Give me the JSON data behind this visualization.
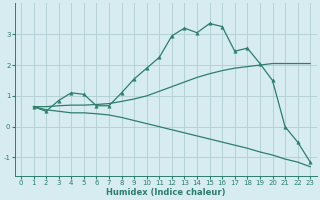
{
  "xlabel": "Humidex (Indice chaleur)",
  "bg_color": "#d6ecf0",
  "line_color": "#2e7d6e",
  "grid_color": "#b0cdd4",
  "xlim": [
    -0.5,
    23.5
  ],
  "ylim": [
    -1.6,
    4.0
  ],
  "yticks": [
    -1,
    0,
    1,
    2,
    3
  ],
  "xticks": [
    0,
    1,
    2,
    3,
    4,
    5,
    6,
    7,
    8,
    9,
    10,
    11,
    12,
    13,
    14,
    15,
    16,
    17,
    18,
    19,
    20,
    21,
    22,
    23
  ],
  "line1_x": [
    1,
    2,
    3,
    4,
    5,
    6,
    7,
    8,
    9,
    10,
    11,
    12,
    13,
    14,
    15,
    16,
    17,
    18,
    19,
    20,
    21,
    22,
    23
  ],
  "line1_y": [
    0.65,
    0.5,
    0.85,
    1.1,
    1.05,
    0.68,
    0.68,
    1.1,
    1.55,
    1.9,
    2.25,
    2.95,
    3.2,
    3.05,
    3.35,
    3.25,
    2.45,
    2.55,
    2.05,
    1.5,
    0.0,
    -0.5,
    -1.15
  ],
  "line2_x": [
    1,
    2,
    3,
    4,
    5,
    6,
    7,
    8,
    9,
    10,
    11,
    12,
    13,
    14,
    15,
    16,
    17,
    18,
    19,
    20,
    21,
    22,
    23
  ],
  "line2_y": [
    0.65,
    0.65,
    0.68,
    0.7,
    0.7,
    0.72,
    0.75,
    0.82,
    0.9,
    1.0,
    1.15,
    1.3,
    1.45,
    1.6,
    1.72,
    1.82,
    1.9,
    1.95,
    2.0,
    2.05,
    2.05,
    2.05,
    2.05
  ],
  "line3_x": [
    1,
    2,
    3,
    4,
    5,
    6,
    7,
    8,
    9,
    10,
    11,
    12,
    13,
    14,
    15,
    16,
    17,
    18,
    19,
    20,
    21,
    22,
    23
  ],
  "line3_y": [
    0.65,
    0.55,
    0.5,
    0.45,
    0.45,
    0.42,
    0.38,
    0.3,
    0.2,
    0.1,
    0.0,
    -0.1,
    -0.2,
    -0.3,
    -0.4,
    -0.5,
    -0.6,
    -0.7,
    -0.82,
    -0.92,
    -1.05,
    -1.15,
    -1.3
  ]
}
